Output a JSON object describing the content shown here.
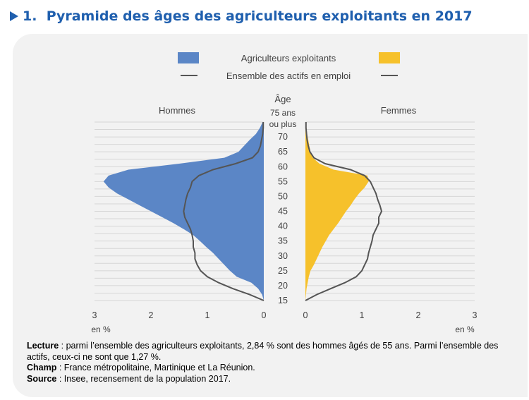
{
  "header": {
    "number": "1.",
    "title": "Pyramide des âges des agriculteurs exploitants en 2017"
  },
  "chart_data": {
    "type": "population-pyramid",
    "title": "Pyramide des âges des agriculteurs exploitants en 2017",
    "legend": {
      "series_label": "Agriculteurs exploitants",
      "line_label": "Ensemble des actifs en emploi"
    },
    "left_label": "Hommes",
    "right_label": "Femmes",
    "age_axis": {
      "title": "Âge",
      "top_label_1": "75 ans",
      "top_label_2": "ou plus",
      "ticks": [
        "70",
        "65",
        "60",
        "55",
        "50",
        "45",
        "40",
        "35",
        "30",
        "25",
        "20",
        "15"
      ]
    },
    "x_axis": {
      "unit_label": "en %",
      "range": [
        0,
        3
      ],
      "left_ticks": [
        "3",
        "2",
        "1",
        "0"
      ],
      "right_ticks": [
        "0",
        "1",
        "2",
        "3"
      ]
    },
    "colors": {
      "men": "#5b86c6",
      "women": "#f6c12b",
      "line": "#555555"
    },
    "ages": [
      15,
      17,
      19,
      21,
      23,
      25,
      27,
      29,
      31,
      33,
      35,
      37,
      39,
      41,
      43,
      45,
      47,
      49,
      51,
      53,
      55,
      57,
      59,
      61,
      63,
      65,
      67,
      69,
      71,
      73,
      75
    ],
    "agri_men": [
      0.0,
      0.03,
      0.1,
      0.22,
      0.48,
      0.6,
      0.7,
      0.8,
      0.9,
      1.02,
      1.13,
      1.25,
      1.42,
      1.6,
      1.8,
      2.0,
      2.2,
      2.4,
      2.6,
      2.75,
      2.84,
      2.75,
      2.4,
      1.5,
      0.7,
      0.45,
      0.35,
      0.25,
      0.14,
      0.07,
      0.02
    ],
    "agri_women": [
      0.0,
      0.01,
      0.02,
      0.04,
      0.06,
      0.09,
      0.15,
      0.2,
      0.25,
      0.3,
      0.36,
      0.42,
      0.5,
      0.58,
      0.65,
      0.72,
      0.8,
      0.87,
      0.95,
      1.05,
      1.12,
      1.1,
      0.5,
      0.25,
      0.13,
      0.09,
      0.07,
      0.05,
      0.03,
      0.02,
      0.01
    ],
    "all_men": [
      0.0,
      0.25,
      0.55,
      0.8,
      1.0,
      1.12,
      1.18,
      1.22,
      1.22,
      1.25,
      1.25,
      1.27,
      1.3,
      1.35,
      1.4,
      1.42,
      1.4,
      1.38,
      1.35,
      1.3,
      1.27,
      1.15,
      0.9,
      0.5,
      0.2,
      0.1,
      0.06,
      0.04,
      0.02,
      0.01,
      0.01
    ],
    "all_women": [
      0.0,
      0.2,
      0.45,
      0.7,
      0.9,
      1.0,
      1.05,
      1.1,
      1.12,
      1.15,
      1.18,
      1.2,
      1.25,
      1.3,
      1.3,
      1.35,
      1.32,
      1.28,
      1.25,
      1.2,
      1.15,
      1.05,
      0.8,
      0.35,
      0.15,
      0.08,
      0.05,
      0.03,
      0.02,
      0.01,
      0.01
    ]
  },
  "notes": {
    "lecture_label": "Lecture",
    "lecture_text": " : parmi l’ensemble des agriculteurs exploitants, 2,84 % sont des hommes âgés de 55 ans. Parmi l’ensemble des actifs, ceux-ci ne sont que 1,27 %.",
    "champ_label": "Champ",
    "champ_text": " : France métropolitaine, Martinique et La Réunion.",
    "source_label": "Source",
    "source_text": " : Insee, recensement de la population 2017."
  }
}
